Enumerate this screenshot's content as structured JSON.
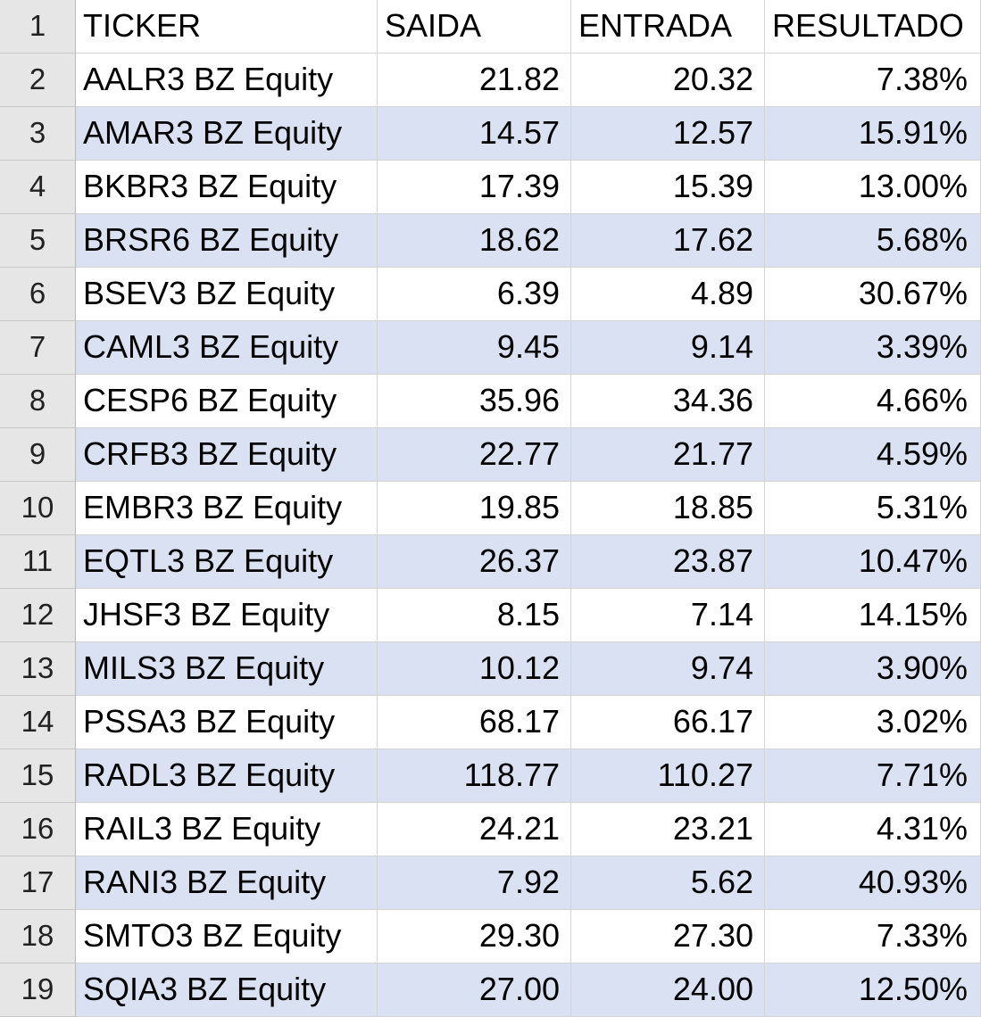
{
  "header": {
    "row_number": "1",
    "columns": [
      "TICKER",
      "SAIDA",
      "ENTRADA",
      "RESULTADO"
    ]
  },
  "colors": {
    "band_fill": "#d9e1f2",
    "row_header_fill": "#e6e6e6",
    "gridline": "#d4d4d4"
  },
  "rows": [
    {
      "n": "2",
      "ticker": "AALR3 BZ Equity",
      "saida": "21.82",
      "entrada": "20.32",
      "resultado": "7.38%"
    },
    {
      "n": "3",
      "ticker": "AMAR3 BZ Equity",
      "saida": "14.57",
      "entrada": "12.57",
      "resultado": "15.91%"
    },
    {
      "n": "4",
      "ticker": "BKBR3 BZ Equity",
      "saida": "17.39",
      "entrada": "15.39",
      "resultado": "13.00%"
    },
    {
      "n": "5",
      "ticker": "BRSR6 BZ Equity",
      "saida": "18.62",
      "entrada": "17.62",
      "resultado": "5.68%"
    },
    {
      "n": "6",
      "ticker": "BSEV3 BZ Equity",
      "saida": "6.39",
      "entrada": "4.89",
      "resultado": "30.67%"
    },
    {
      "n": "7",
      "ticker": "CAML3 BZ Equity",
      "saida": "9.45",
      "entrada": "9.14",
      "resultado": "3.39%"
    },
    {
      "n": "8",
      "ticker": "CESP6 BZ Equity",
      "saida": "35.96",
      "entrada": "34.36",
      "resultado": "4.66%"
    },
    {
      "n": "9",
      "ticker": "CRFB3 BZ Equity",
      "saida": "22.77",
      "entrada": "21.77",
      "resultado": "4.59%"
    },
    {
      "n": "10",
      "ticker": "EMBR3 BZ Equity",
      "saida": "19.85",
      "entrada": "18.85",
      "resultado": "5.31%"
    },
    {
      "n": "11",
      "ticker": "EQTL3 BZ Equity",
      "saida": "26.37",
      "entrada": "23.87",
      "resultado": "10.47%"
    },
    {
      "n": "12",
      "ticker": "JHSF3 BZ Equity",
      "saida": "8.15",
      "entrada": "7.14",
      "resultado": "14.15%"
    },
    {
      "n": "13",
      "ticker": "MILS3 BZ Equity",
      "saida": "10.12",
      "entrada": "9.74",
      "resultado": "3.90%"
    },
    {
      "n": "14",
      "ticker": "PSSA3 BZ Equity",
      "saida": "68.17",
      "entrada": "66.17",
      "resultado": "3.02%"
    },
    {
      "n": "15",
      "ticker": "RADL3 BZ Equity",
      "saida": "118.77",
      "entrada": "110.27",
      "resultado": "7.71%"
    },
    {
      "n": "16",
      "ticker": "RAIL3 BZ Equity",
      "saida": "24.21",
      "entrada": "23.21",
      "resultado": "4.31%"
    },
    {
      "n": "17",
      "ticker": "RANI3 BZ Equity",
      "saida": "7.92",
      "entrada": "5.62",
      "resultado": "40.93%"
    },
    {
      "n": "18",
      "ticker": "SMTO3 BZ Equity",
      "saida": "29.30",
      "entrada": "27.30",
      "resultado": "7.33%"
    },
    {
      "n": "19",
      "ticker": "SQIA3 BZ Equity",
      "saida": "27.00",
      "entrada": "24.00",
      "resultado": "12.50%"
    }
  ]
}
